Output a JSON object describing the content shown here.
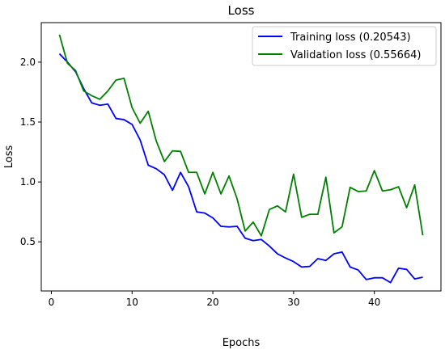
{
  "chart_data": {
    "type": "line",
    "title": "Loss",
    "xlabel": "Epochs",
    "ylabel": "Loss",
    "xlim": [
      -1.25,
      48.25
    ],
    "ylim": [
      0.09,
      2.33
    ],
    "xticks": [
      0,
      10,
      20,
      30,
      40
    ],
    "yticks": [
      0.5,
      1.0,
      1.5,
      2.0
    ],
    "xtick_labels": [
      "0",
      "10",
      "20",
      "30",
      "40"
    ],
    "ytick_labels": [
      "0.5",
      "1.0",
      "1.5",
      "2.0"
    ],
    "grid": false,
    "legend_position": "top-right",
    "x": [
      1,
      2,
      3,
      4,
      5,
      6,
      7,
      8,
      9,
      10,
      11,
      12,
      13,
      14,
      15,
      16,
      17,
      18,
      19,
      20,
      21,
      22,
      23,
      24,
      25,
      26,
      27,
      28,
      29,
      30,
      31,
      32,
      33,
      34,
      35,
      36,
      37,
      38,
      39,
      40,
      41,
      42,
      43,
      44,
      45,
      46
    ],
    "series": [
      {
        "name": "Training loss (0.20543)",
        "color": "#0000ff",
        "values": [
          2.07,
          2.0,
          1.92,
          1.78,
          1.66,
          1.64,
          1.65,
          1.53,
          1.52,
          1.48,
          1.35,
          1.14,
          1.11,
          1.06,
          0.93,
          1.08,
          0.96,
          0.75,
          0.74,
          0.7,
          0.63,
          0.625,
          0.63,
          0.53,
          0.51,
          0.52,
          0.465,
          0.4,
          0.365,
          0.335,
          0.29,
          0.295,
          0.36,
          0.345,
          0.4,
          0.415,
          0.29,
          0.265,
          0.185,
          0.2,
          0.2,
          0.16,
          0.28,
          0.27,
          0.19,
          0.205
        ]
      },
      {
        "name": "Validation loss (0.55664)",
        "color": "#008000",
        "values": [
          2.23,
          1.99,
          1.93,
          1.76,
          1.72,
          1.69,
          1.76,
          1.85,
          1.865,
          1.62,
          1.49,
          1.59,
          1.34,
          1.17,
          1.26,
          1.255,
          1.08,
          1.08,
          0.9,
          1.08,
          0.9,
          1.05,
          0.86,
          0.59,
          0.665,
          0.55,
          0.77,
          0.8,
          0.75,
          1.065,
          0.705,
          0.73,
          0.73,
          1.04,
          0.575,
          0.625,
          0.955,
          0.92,
          0.925,
          1.095,
          0.925,
          0.935,
          0.96,
          0.785,
          0.975,
          0.555
        ]
      }
    ]
  }
}
